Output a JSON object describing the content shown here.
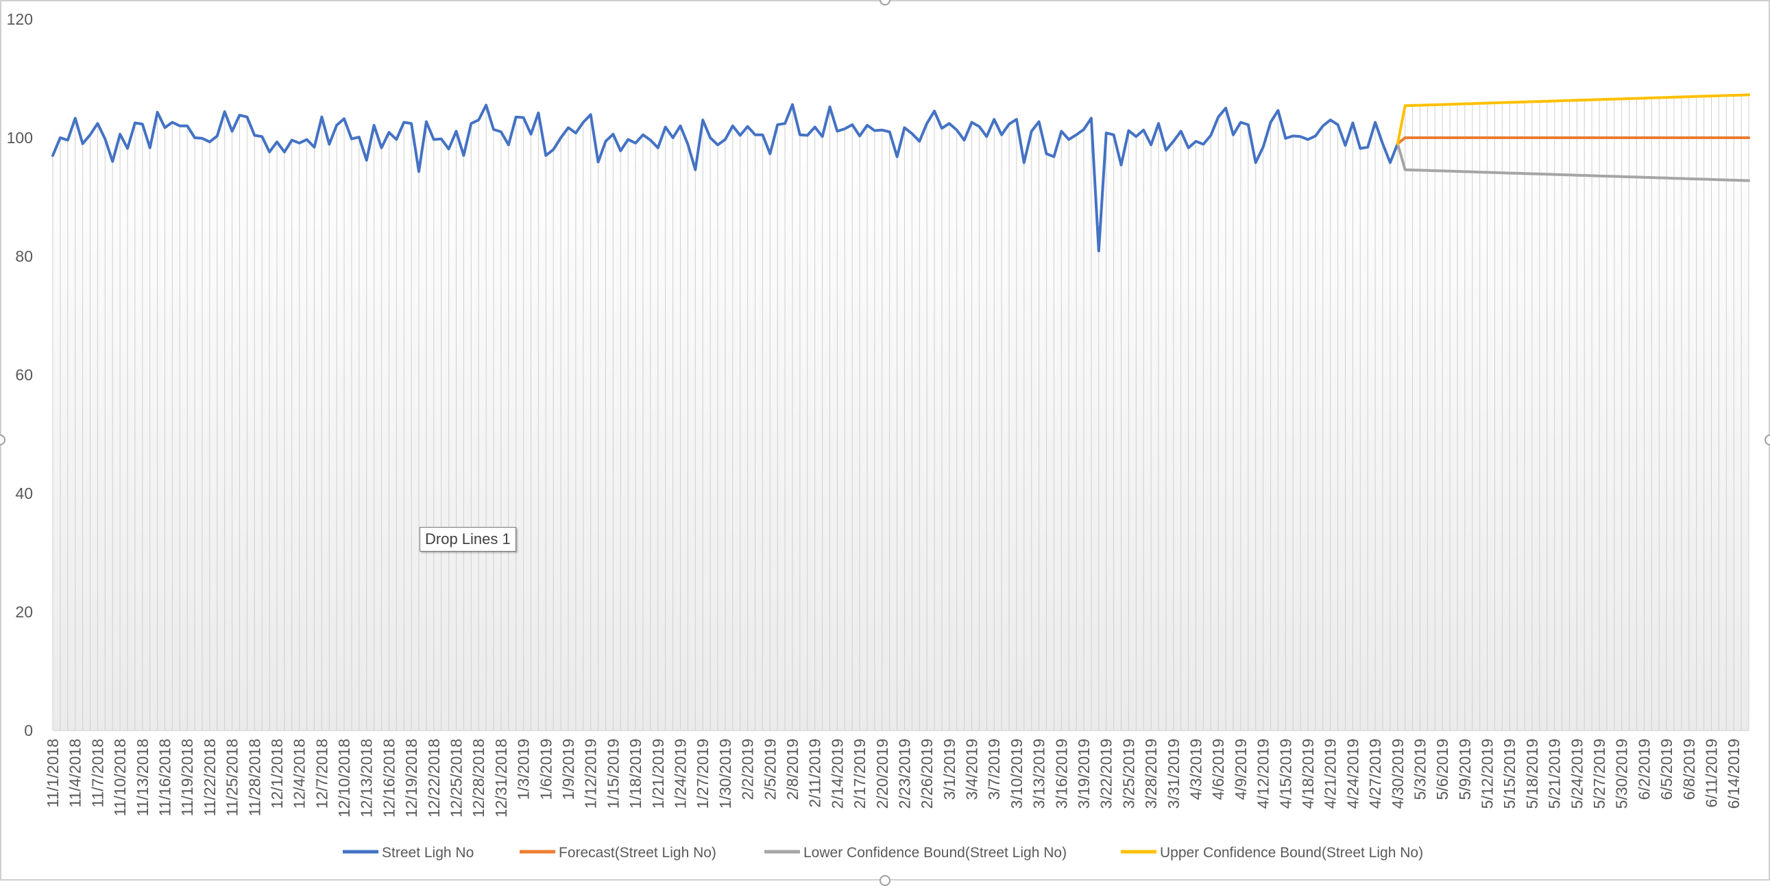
{
  "chart_data": {
    "type": "line",
    "title": "",
    "xlabel": "",
    "ylabel": "",
    "ylim": [
      0,
      120
    ],
    "yticks": [
      0,
      20,
      40,
      60,
      80,
      100,
      120
    ],
    "grid": false,
    "drop_lines": true,
    "legend_position": "bottom",
    "tooltip": "Drop Lines 1",
    "start_date": "11/1/2018",
    "end_date": "6/16/2019",
    "x_tick_labels": [
      "11/1/2018",
      "11/4/2018",
      "11/7/2018",
      "11/10/2018",
      "11/13/2018",
      "11/16/2018",
      "11/19/2018",
      "11/22/2018",
      "11/25/2018",
      "11/28/2018",
      "12/1/2018",
      "12/4/2018",
      "12/7/2018",
      "12/10/2018",
      "12/13/2018",
      "12/16/2018",
      "12/19/2018",
      "12/22/2018",
      "12/25/2018",
      "12/28/2018",
      "12/31/2018",
      "1/3/2019",
      "1/6/2019",
      "1/9/2019",
      "1/12/2019",
      "1/15/2019",
      "1/18/2019",
      "1/21/2019",
      "1/24/2019",
      "1/27/2019",
      "1/30/2019",
      "2/2/2019",
      "2/5/2019",
      "2/8/2019",
      "2/11/2019",
      "2/14/2019",
      "2/17/2019",
      "2/20/2019",
      "2/23/2019",
      "2/26/2019",
      "3/1/2019",
      "3/4/2019",
      "3/7/2019",
      "3/10/2019",
      "3/13/2019",
      "3/16/2019",
      "3/19/2019",
      "3/22/2019",
      "3/25/2019",
      "3/28/2019",
      "3/31/2019",
      "4/3/2019",
      "4/6/2019",
      "4/9/2019",
      "4/12/2019",
      "4/15/2019",
      "4/18/2019",
      "4/21/2019",
      "4/24/2019",
      "4/27/2019",
      "4/30/2019",
      "5/3/2019",
      "5/6/2019",
      "5/9/2019",
      "5/12/2019",
      "5/15/2019",
      "5/18/2019",
      "5/21/2019",
      "5/24/2019",
      "5/27/2019",
      "5/30/2019",
      "6/2/2019",
      "6/5/2019",
      "6/8/2019",
      "6/11/2019",
      "6/14/2019"
    ],
    "series": [
      {
        "name": "Street Ligh No",
        "color": "#4472C4",
        "x_start": "11/1/2018",
        "values": [
          97.0,
          100.0,
          99.6,
          103.3,
          99.0,
          100.5,
          102.4,
          99.8,
          96.0,
          100.6,
          98.2,
          102.5,
          102.3,
          98.3,
          104.3,
          101.7,
          102.6,
          102.0,
          102.0,
          100.0,
          99.9,
          99.3,
          100.3,
          104.4,
          101.1,
          103.8,
          103.5,
          100.4,
          100.2,
          97.6,
          99.3,
          97.6,
          99.6,
          99.1,
          99.7,
          98.4,
          103.5,
          98.9,
          102.1,
          103.2,
          99.8,
          100.1,
          96.2,
          102.1,
          98.3,
          100.9,
          99.7,
          102.6,
          102.4,
          94.3,
          102.7,
          99.7,
          99.8,
          98.1,
          101.1,
          97.0,
          102.4,
          103.0,
          105.5,
          101.4,
          101.0,
          98.8,
          103.5,
          103.4,
          100.6,
          104.2,
          97.0,
          98.0,
          100.0,
          101.7,
          100.8,
          102.6,
          103.9,
          95.9,
          99.4,
          100.6,
          97.8,
          99.7,
          99.1,
          100.5,
          99.6,
          98.3,
          101.8,
          100.0,
          102.0,
          98.9,
          94.6,
          103.0,
          100.0,
          98.8,
          99.7,
          102.0,
          100.4,
          101.9,
          100.5,
          100.5,
          97.3,
          102.2,
          102.4,
          105.6,
          100.5,
          100.4,
          101.8,
          100.2,
          105.2,
          101.1,
          101.5,
          102.2,
          100.3,
          102.1,
          101.2,
          101.3,
          101.0,
          96.8,
          101.7,
          100.7,
          99.4,
          102.4,
          104.5,
          101.6,
          102.4,
          101.3,
          99.6,
          102.6,
          101.9,
          100.2,
          103.1,
          100.5,
          102.3,
          103.1,
          95.8,
          101.1,
          102.7,
          97.3,
          96.8,
          101.1,
          99.7,
          100.5,
          101.4,
          103.3,
          80.9,
          100.8,
          100.5,
          95.4,
          101.2,
          100.2,
          101.3,
          98.8,
          102.4,
          97.9,
          99.4,
          101.1,
          98.3,
          99.4,
          98.9,
          100.4,
          103.5,
          105.0,
          100.5,
          102.6,
          102.2,
          95.8,
          98.4,
          102.6,
          104.6,
          99.9,
          100.3,
          100.2,
          99.7,
          100.3,
          102.0,
          103.0,
          102.2,
          98.7,
          102.5,
          98.2,
          98.4,
          102.6,
          99.0,
          95.8,
          99.0
        ]
      },
      {
        "name": "Forecast(Street Ligh No)",
        "color": "#ED7D31",
        "x_start": "4/30/2019",
        "values": [
          99.0,
          100.0,
          100.0,
          100.0,
          100.0,
          100.0,
          100.0,
          100.0,
          100.0,
          100.0,
          100.0,
          100.0,
          100.0,
          100.0,
          100.0,
          100.0,
          100.0,
          100.0,
          100.0,
          100.0,
          100.0,
          100.0,
          100.0,
          100.0,
          100.0,
          100.0,
          100.0,
          100.0,
          100.0,
          100.0,
          100.0,
          100.0,
          100.0,
          100.0,
          100.0,
          100.0,
          100.0,
          100.0,
          100.0,
          100.0,
          100.0,
          100.0,
          100.0,
          100.0,
          100.0,
          100.0,
          100.0,
          100.0
        ]
      },
      {
        "name": "Lower Confidence Bound(Street Ligh No)",
        "color": "#A5A5A5",
        "x_start": "4/30/2019",
        "values": [
          99.0,
          94.6,
          94.56,
          94.52,
          94.48,
          94.44,
          94.4,
          94.36,
          94.32,
          94.28,
          94.24,
          94.2,
          94.16,
          94.12,
          94.08,
          94.04,
          94.0,
          93.96,
          93.92,
          93.88,
          93.84,
          93.8,
          93.76,
          93.72,
          93.68,
          93.64,
          93.6,
          93.56,
          93.52,
          93.48,
          93.44,
          93.4,
          93.36,
          93.32,
          93.28,
          93.24,
          93.2,
          93.16,
          93.12,
          93.08,
          93.04,
          93.0,
          92.96,
          92.92,
          92.88,
          92.84,
          92.8,
          92.76
        ]
      },
      {
        "name": "Upper Confidence Bound(Street Ligh No)",
        "color": "#FFC000",
        "x_start": "4/30/2019",
        "values": [
          99.0,
          105.4,
          105.44,
          105.48,
          105.52,
          105.56,
          105.6,
          105.64,
          105.68,
          105.72,
          105.76,
          105.8,
          105.84,
          105.88,
          105.92,
          105.96,
          106.0,
          106.04,
          106.08,
          106.12,
          106.16,
          106.2,
          106.24,
          106.28,
          106.32,
          106.36,
          106.4,
          106.44,
          106.48,
          106.52,
          106.56,
          106.6,
          106.64,
          106.68,
          106.72,
          106.76,
          106.8,
          106.84,
          106.88,
          106.92,
          106.96,
          107.0,
          107.04,
          107.08,
          107.12,
          107.16,
          107.2,
          107.24
        ]
      }
    ]
  }
}
